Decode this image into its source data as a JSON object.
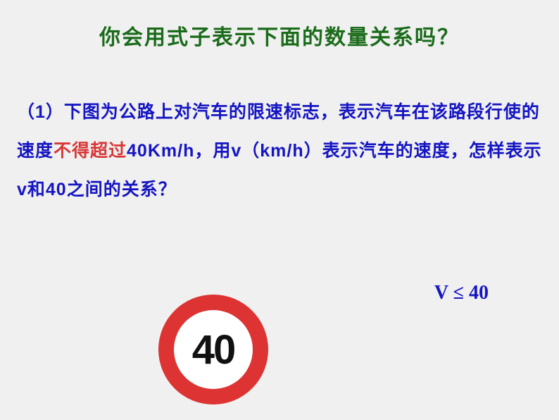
{
  "title": "你会用式子表示下面的数量关系吗？",
  "body": {
    "part1": "（1）下图为公路上对汽车的限速标志，表示汽车在该路段行使的速度",
    "highlight": "不得超过",
    "part2": "40Km/h，用v（km/h）表示汽车的速度，怎样表示v和40之间的关系？"
  },
  "equation": "V  ≤   40",
  "sign": {
    "number": "40",
    "outer_color": "#dd3333",
    "inner_color": "#ffffff",
    "text_color": "#111111"
  },
  "colors": {
    "title": "#1a6b1a",
    "body": "#1515c4",
    "highlight": "#d93636",
    "background": "#f0f0f0"
  },
  "typography": {
    "title_fontsize": 30,
    "body_fontsize": 25,
    "equation_fontsize": 28,
    "sign_number_fontsize": 58
  }
}
